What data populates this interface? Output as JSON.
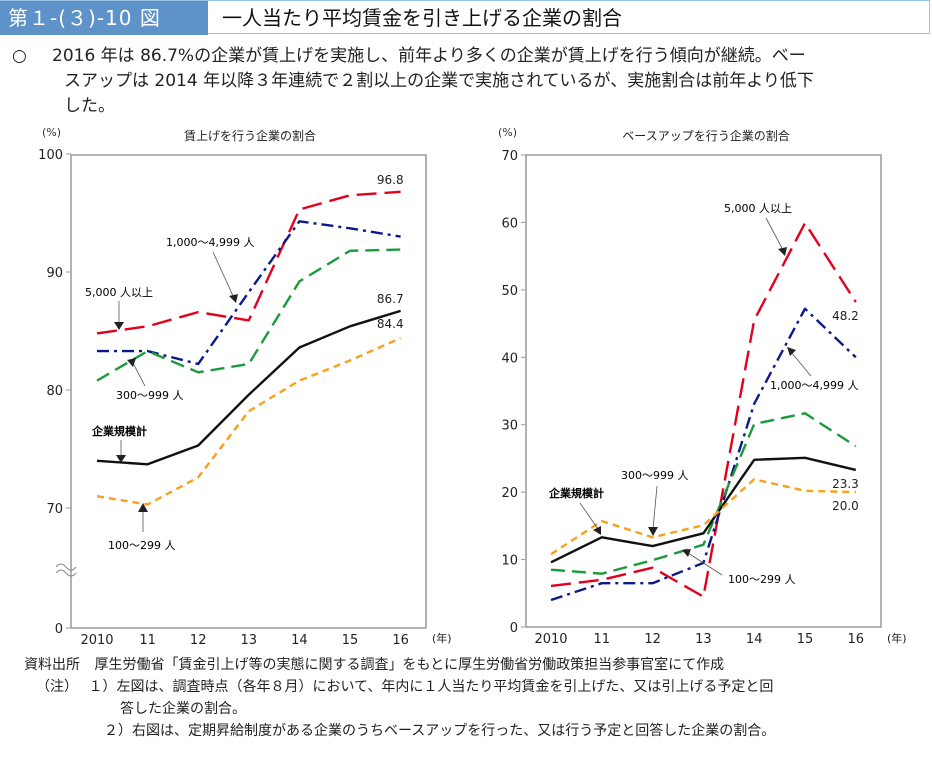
{
  "header": {
    "figure_number": "第１-(３)-10 図",
    "title": "一人当たり平均賃金を引き上げる企業の割合"
  },
  "summary": {
    "bullet": "○",
    "line1": "2016 年は 86.7%の企業が賃上げを実施し、前年より多くの企業が賃上げを行う傾向が継続。ベー",
    "line2": "スアップは 2014 年以降３年連続で２割以上の企業で実施されているが、実施割合は前年より低下",
    "line3": "した。"
  },
  "colors": {
    "header_bg": "#5e93c9",
    "total": "#111111",
    "s100_299": "#f7a01a",
    "s300_999": "#1a9a3a",
    "s1000_4999": "#0a1a88",
    "s5000": "#e3001b"
  },
  "chart_data": [
    {
      "type": "line",
      "title": "賃上げを行う企業の割合",
      "ylabel": "(%)",
      "xlabel": "(年)",
      "x": [
        "2010",
        "11",
        "12",
        "13",
        "14",
        "15",
        "16"
      ],
      "ylim": [
        0,
        100
      ],
      "axis_break": "between 0 and 70",
      "yticks": [
        0,
        70,
        80,
        90,
        100
      ],
      "grid": false,
      "series": [
        {
          "key": "s5000",
          "name": "5,000 人以上",
          "values": [
            84.8,
            85.4,
            86.6,
            85.9,
            95.3,
            96.5,
            96.8
          ],
          "end_label": "96.8"
        },
        {
          "key": "s1000_4999",
          "name": "1,000～4,999 人",
          "values": [
            83.3,
            83.3,
            82.2,
            88.3,
            94.3,
            93.7,
            93.0
          ]
        },
        {
          "key": "s300_999",
          "name": "300～999 人",
          "values": [
            80.8,
            83.3,
            81.5,
            82.2,
            89.2,
            91.8,
            91.9
          ]
        },
        {
          "key": "total",
          "name": "企業規模計",
          "values": [
            74.0,
            73.7,
            75.3,
            79.6,
            83.6,
            85.4,
            86.7
          ],
          "end_label": "86.7"
        },
        {
          "key": "s100_299",
          "name": "100～299 人",
          "values": [
            71.0,
            70.3,
            72.6,
            78.2,
            80.8,
            82.5,
            84.4
          ],
          "end_label": "84.4"
        }
      ],
      "annotations": [
        {
          "text": "5,000 人以上",
          "series": "s5000"
        },
        {
          "text": "1,000～4,999 人",
          "series": "s1000_4999"
        },
        {
          "text": "300～999 人",
          "series": "s300_999"
        },
        {
          "text": "企業規模計",
          "series": "total"
        },
        {
          "text": "100～299 人",
          "series": "s100_299"
        }
      ]
    },
    {
      "type": "line",
      "title": "ベースアップを行う企業の割合",
      "ylabel": "(%)",
      "xlabel": "(年)",
      "x": [
        "2010",
        "11",
        "12",
        "13",
        "14",
        "15",
        "16"
      ],
      "ylim": [
        0,
        70
      ],
      "yticks": [
        0,
        10,
        20,
        30,
        40,
        50,
        60,
        70
      ],
      "grid": false,
      "series": [
        {
          "key": "s5000",
          "name": "5,000 人以上",
          "values": [
            6.1,
            7.0,
            8.8,
            4.5,
            45.5,
            59.9,
            48.2
          ],
          "end_label": "48.2"
        },
        {
          "key": "s1000_4999",
          "name": "1,000～4,999 人",
          "values": [
            4.0,
            6.5,
            6.5,
            9.5,
            33.1,
            47.2,
            40.0
          ]
        },
        {
          "key": "s300_999",
          "name": "300～999 人",
          "values": [
            8.5,
            7.9,
            9.9,
            12.2,
            30.1,
            31.7,
            26.8
          ]
        },
        {
          "key": "total",
          "name": "企業規模計",
          "values": [
            9.6,
            13.3,
            12.0,
            13.9,
            24.8,
            25.1,
            23.3
          ],
          "end_label": "23.3"
        },
        {
          "key": "s100_299",
          "name": "100～299 人",
          "values": [
            10.8,
            15.7,
            13.3,
            15.1,
            21.9,
            20.2,
            20.0
          ],
          "end_label": "20.0"
        }
      ],
      "annotations": [
        {
          "text": "5,000 人以上",
          "series": "s5000"
        },
        {
          "text": "1,000～4,999 人",
          "series": "s1000_4999"
        },
        {
          "text": "300～999 人",
          "series": "s300_999"
        },
        {
          "text": "企業規模計",
          "series": "total"
        },
        {
          "text": "100～299 人",
          "series": "s100_299"
        }
      ]
    }
  ],
  "notes": {
    "source_label": "資料出所",
    "source_text": "厚生労働省「賃金引上げ等の実態に関する調査」をもとに厚生労働省労働政策担当参事官室にて作成",
    "note_label": "（注）",
    "note1a": "１）左図は、調査時点（各年８月）において、年内に１人当たり平均賃金を引上げた、又は引上げる予定と回",
    "note1b": "答した企業の割合。",
    "note2": "２）右図は、定期昇給制度がある企業のうちベースアップを行った、又は行う予定と回答した企業の割合。"
  }
}
